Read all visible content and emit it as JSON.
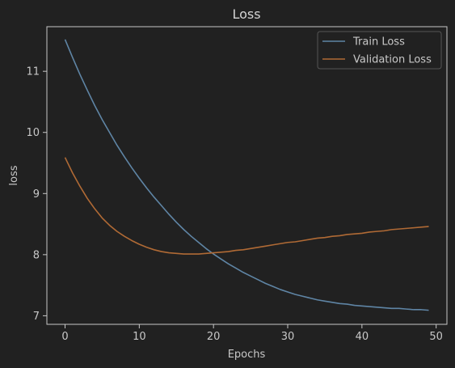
{
  "chart_data": {
    "type": "line",
    "title": "Loss",
    "xlabel": "Epochs",
    "ylabel": "loss",
    "xlim": [
      -2.45,
      51.45
    ],
    "ylim": [
      6.86,
      11.73
    ],
    "xticks": [
      0,
      10,
      20,
      30,
      40,
      50
    ],
    "yticks": [
      7,
      8,
      9,
      10,
      11
    ],
    "grid": false,
    "legend_position": "top-right",
    "series": [
      {
        "name": "Train Loss",
        "color": "#5f85a5",
        "x": [
          0,
          1,
          2,
          3,
          4,
          5,
          6,
          7,
          8,
          9,
          10,
          11,
          12,
          13,
          14,
          15,
          16,
          17,
          18,
          19,
          20,
          21,
          22,
          23,
          24,
          25,
          26,
          27,
          28,
          29,
          30,
          31,
          32,
          33,
          34,
          35,
          36,
          37,
          38,
          39,
          40,
          41,
          42,
          43,
          44,
          45,
          46,
          47,
          48,
          49
        ],
        "values": [
          11.52,
          11.23,
          10.95,
          10.69,
          10.44,
          10.21,
          10.0,
          9.79,
          9.6,
          9.42,
          9.25,
          9.09,
          8.94,
          8.8,
          8.66,
          8.53,
          8.41,
          8.3,
          8.2,
          8.1,
          8.01,
          7.93,
          7.85,
          7.78,
          7.71,
          7.65,
          7.59,
          7.53,
          7.48,
          7.43,
          7.39,
          7.35,
          7.32,
          7.29,
          7.26,
          7.24,
          7.22,
          7.2,
          7.19,
          7.17,
          7.16,
          7.15,
          7.14,
          7.13,
          7.12,
          7.12,
          7.11,
          7.1,
          7.1,
          7.09
        ]
      },
      {
        "name": "Validation Loss",
        "color": "#b06a35",
        "x": [
          0,
          1,
          2,
          3,
          4,
          5,
          6,
          7,
          8,
          9,
          10,
          11,
          12,
          13,
          14,
          15,
          16,
          17,
          18,
          19,
          20,
          21,
          22,
          23,
          24,
          25,
          26,
          27,
          28,
          29,
          30,
          31,
          32,
          33,
          34,
          35,
          36,
          37,
          38,
          39,
          40,
          41,
          42,
          43,
          44,
          45,
          46,
          47,
          48,
          49
        ],
        "values": [
          9.59,
          9.34,
          9.12,
          8.92,
          8.75,
          8.6,
          8.48,
          8.38,
          8.3,
          8.23,
          8.17,
          8.12,
          8.08,
          8.05,
          8.03,
          8.02,
          8.01,
          8.01,
          8.01,
          8.02,
          8.03,
          8.04,
          8.05,
          8.07,
          8.08,
          8.1,
          8.12,
          8.14,
          8.16,
          8.18,
          8.2,
          8.21,
          8.23,
          8.25,
          8.27,
          8.28,
          8.3,
          8.31,
          8.33,
          8.34,
          8.35,
          8.37,
          8.38,
          8.39,
          8.41,
          8.42,
          8.43,
          8.44,
          8.45,
          8.46
        ]
      }
    ]
  }
}
